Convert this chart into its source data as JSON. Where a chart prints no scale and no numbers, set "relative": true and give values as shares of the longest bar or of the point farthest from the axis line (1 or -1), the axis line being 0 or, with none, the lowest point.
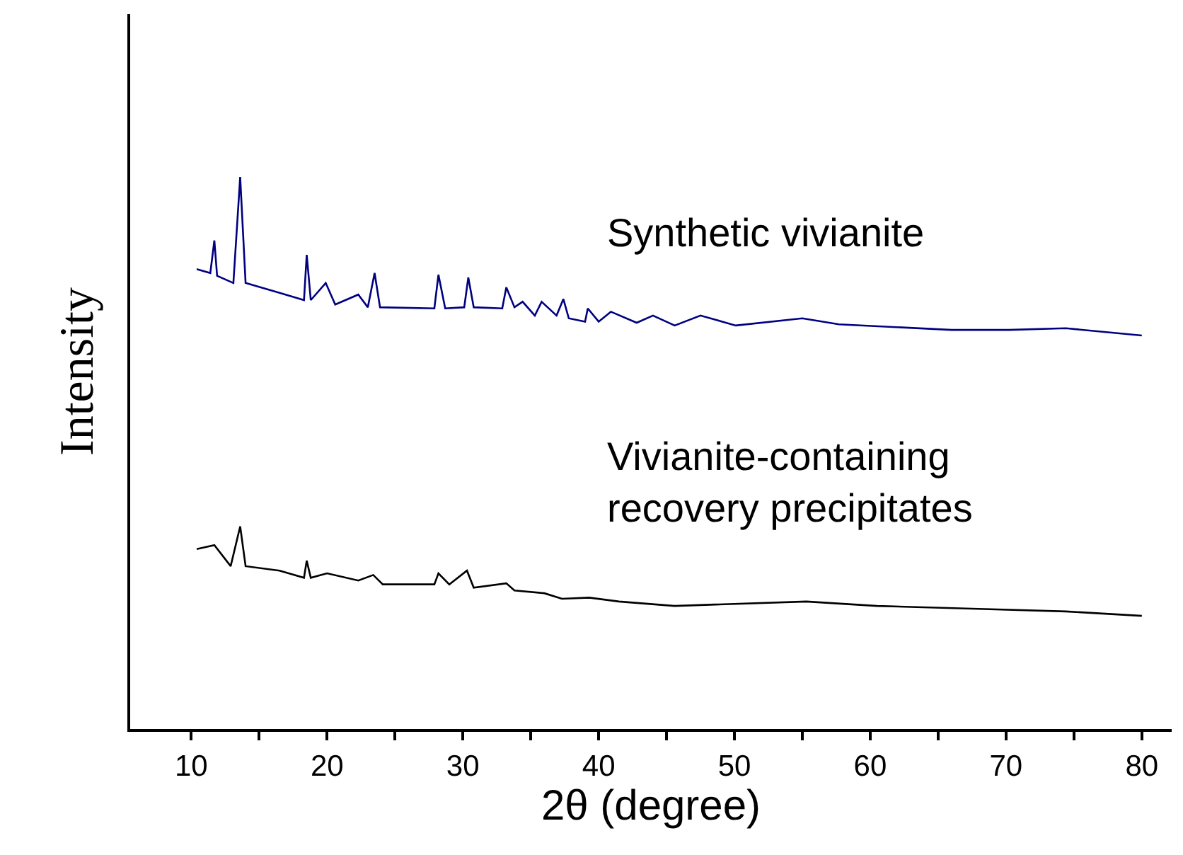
{
  "chart_data": {
    "type": "line",
    "relative": true,
    "xlabel": "2θ (degree)",
    "ylabel": "Intensity",
    "xlim": [
      5.5,
      82.2
    ],
    "xticks": [
      10,
      {
        "value": 15,
        "label": null
      },
      20,
      {
        "value": 25,
        "label": null
      },
      30,
      {
        "value": 35,
        "label": null
      },
      40,
      {
        "value": 45,
        "label": null
      },
      50,
      {
        "value": 55,
        "label": null
      },
      60,
      {
        "value": 65,
        "label": null
      },
      70,
      {
        "value": 75,
        "label": null
      },
      80
    ],
    "legend": false,
    "marker": "none",
    "line_style": "solid",
    "series": [
      {
        "name": "Synthetic vivianite",
        "color": "#000080",
        "x": [
          10.4,
          11.4,
          11.7,
          11.9,
          13.1,
          13.6,
          14.0,
          16.5,
          18.3,
          18.5,
          18.8,
          19.9,
          20.6,
          22.3,
          23.0,
          23.5,
          23.9,
          27.9,
          28.2,
          28.7,
          30.1,
          30.4,
          30.8,
          32.9,
          33.2,
          33.8,
          34.4,
          35.3,
          35.8,
          36.9,
          37.4,
          37.8,
          39.0,
          39.2,
          40.0,
          40.9,
          42.8,
          44.0,
          45.6,
          47.5,
          50.1,
          55.0,
          57.7,
          61.9,
          66.0,
          70.2,
          74.4,
          80.0
        ],
        "values": [
          0.833,
          0.826,
          0.885,
          0.821,
          0.808,
          1.0,
          0.808,
          0.79,
          0.777,
          0.859,
          0.777,
          0.808,
          0.769,
          0.787,
          0.764,
          0.826,
          0.764,
          0.762,
          0.823,
          0.762,
          0.764,
          0.818,
          0.764,
          0.762,
          0.8,
          0.764,
          0.774,
          0.749,
          0.774,
          0.749,
          0.779,
          0.744,
          0.738,
          0.762,
          0.738,
          0.756,
          0.736,
          0.749,
          0.731,
          0.749,
          0.731,
          0.744,
          0.733,
          0.728,
          0.723,
          0.723,
          0.726,
          0.713
        ]
      },
      {
        "name": "Vivianite-containing recovery precipitates",
        "color": "#000000",
        "x": [
          10.4,
          11.7,
          12.9,
          13.6,
          14.0,
          16.5,
          18.3,
          18.5,
          18.8,
          20.0,
          22.3,
          23.4,
          24.1,
          27.9,
          28.2,
          29.0,
          30.3,
          30.8,
          33.2,
          33.8,
          36.0,
          37.3,
          39.3,
          41.5,
          45.6,
          55.3,
          60.5,
          67.5,
          74.4,
          80.0
        ],
        "values": [
          0.326,
          0.333,
          0.295,
          0.367,
          0.295,
          0.287,
          0.274,
          0.305,
          0.274,
          0.282,
          0.269,
          0.279,
          0.262,
          0.262,
          0.282,
          0.262,
          0.287,
          0.256,
          0.264,
          0.251,
          0.246,
          0.236,
          0.238,
          0.231,
          0.223,
          0.231,
          0.223,
          0.218,
          0.213,
          0.205
        ]
      }
    ]
  }
}
